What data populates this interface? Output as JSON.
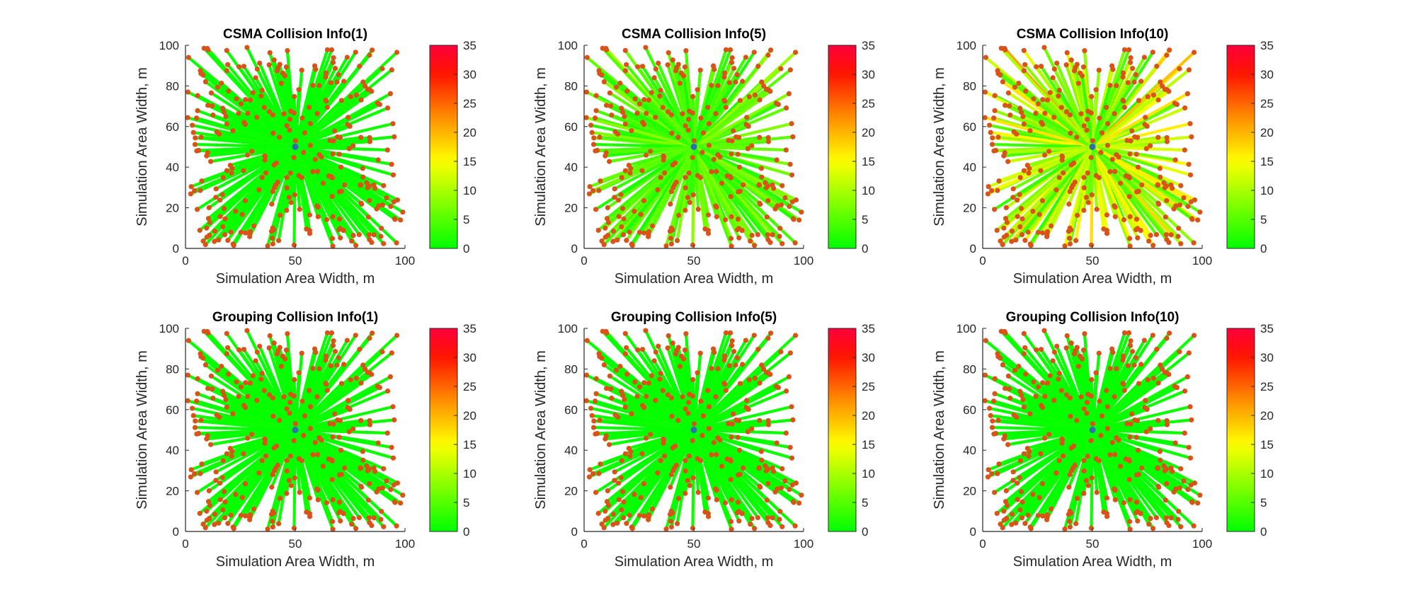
{
  "figure": {
    "point_count": 300,
    "sink": [
      50,
      50
    ],
    "sink_color": "#2f6fb0",
    "node_color": "#d95319",
    "axis_color": "#262626"
  },
  "chart_data": [
    {
      "id": "csma-1",
      "type": "scatter",
      "title": "CSMA Collision Info(1)",
      "xlabel": "Simulation Area Width, m",
      "ylabel": "Simulation Area Width, m",
      "xlim": [
        0,
        100
      ],
      "ylim": [
        0,
        100
      ],
      "xticks": [
        "0",
        "50",
        "100"
      ],
      "yticks": [
        "0",
        "20",
        "40",
        "60",
        "80",
        "100"
      ],
      "colorbar": {
        "clim": [
          0,
          35
        ],
        "ticks": [
          "0",
          "5",
          "10",
          "15",
          "20",
          "25",
          "30",
          "35"
        ],
        "colormap": "green-yellow-red"
      },
      "collision_scale": 0.4,
      "note": "All links green (low collisions)"
    },
    {
      "id": "csma-5",
      "type": "scatter",
      "title": "CSMA Collision Info(5)",
      "xlabel": "Simulation Area Width, m",
      "ylabel": "Simulation Area Width, m",
      "xlim": [
        0,
        100
      ],
      "ylim": [
        0,
        100
      ],
      "xticks": [
        "0",
        "50",
        "100"
      ],
      "yticks": [
        "0",
        "20",
        "40",
        "60",
        "80",
        "100"
      ],
      "colorbar": {
        "clim": [
          0,
          35
        ],
        "ticks": [
          "0",
          "5",
          "10",
          "15",
          "20",
          "25",
          "30",
          "35"
        ],
        "colormap": "green-yellow-red"
      },
      "collision_scale": 3.4,
      "note": "Links mostly green-yellow"
    },
    {
      "id": "csma-10",
      "type": "scatter",
      "title": "CSMA Collision Info(10)",
      "xlabel": "Simulation Area Width, m",
      "ylabel": "Simulation Area Width, m",
      "xlim": [
        0,
        100
      ],
      "ylim": [
        0,
        100
      ],
      "xticks": [
        "0",
        "50",
        "100"
      ],
      "yticks": [
        "0",
        "20",
        "40",
        "60",
        "80",
        "100"
      ],
      "colorbar": {
        "clim": [
          0,
          35
        ],
        "ticks": [
          "0",
          "5",
          "10",
          "15",
          "20",
          "25",
          "30",
          "35"
        ],
        "colormap": "green-yellow-red"
      },
      "collision_scale": 7.2,
      "note": "Links yellow-orange-red"
    },
    {
      "id": "grouping-1",
      "type": "scatter",
      "title": "Grouping Collision Info(1)",
      "xlabel": "Simulation Area Width, m",
      "ylabel": "Simulation Area Width, m",
      "xlim": [
        0,
        100
      ],
      "ylim": [
        0,
        100
      ],
      "xticks": [
        "0",
        "50",
        "100"
      ],
      "yticks": [
        "0",
        "20",
        "40",
        "60",
        "80",
        "100"
      ],
      "colorbar": {
        "clim": [
          0,
          35
        ],
        "ticks": [
          "0",
          "5",
          "10",
          "15",
          "20",
          "25",
          "30",
          "35"
        ],
        "colormap": "green-yellow-red"
      },
      "collision_scale": 0.3,
      "note": "All links green"
    },
    {
      "id": "grouping-5",
      "type": "scatter",
      "title": "Grouping Collision Info(5)",
      "xlabel": "Simulation Area Width, m",
      "ylabel": "Simulation Area Width, m",
      "xlim": [
        0,
        100
      ],
      "ylim": [
        0,
        100
      ],
      "xticks": [
        "0",
        "50",
        "100"
      ],
      "yticks": [
        "0",
        "20",
        "40",
        "60",
        "80",
        "100"
      ],
      "colorbar": {
        "clim": [
          0,
          35
        ],
        "ticks": [
          "0",
          "5",
          "10",
          "15",
          "20",
          "25",
          "30",
          "35"
        ],
        "colormap": "green-yellow-red"
      },
      "collision_scale": 0.3,
      "note": "All links green"
    },
    {
      "id": "grouping-10",
      "type": "scatter",
      "title": "Grouping Collision Info(10)",
      "xlabel": "Simulation Area Width, m",
      "ylabel": "Simulation Area Width, m",
      "xlim": [
        0,
        100
      ],
      "ylim": [
        0,
        100
      ],
      "xticks": [
        "0",
        "50",
        "100"
      ],
      "yticks": [
        "0",
        "20",
        "40",
        "60",
        "80",
        "100"
      ],
      "colorbar": {
        "clim": [
          0,
          35
        ],
        "ticks": [
          "0",
          "5",
          "10",
          "15",
          "20",
          "25",
          "30",
          "35"
        ],
        "colormap": "green-yellow-red"
      },
      "collision_scale": 0.3,
      "note": "All links green"
    }
  ]
}
